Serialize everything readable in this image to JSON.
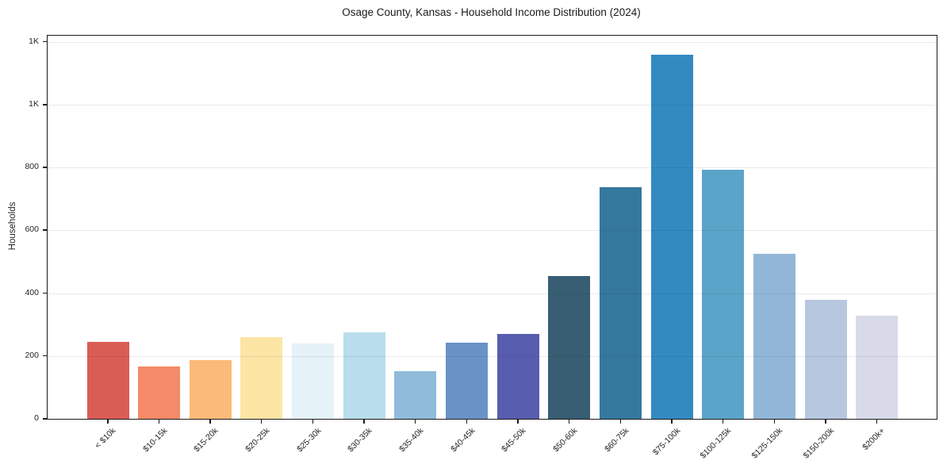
{
  "chart": {
    "title": "Osage County, Kansas - Household Income Distribution (2024)",
    "ylabel": "Households"
  },
  "chart_data": {
    "type": "bar",
    "title": "Osage County, Kansas - Household Income Distribution (2024)",
    "xlabel": "",
    "ylabel": "Households",
    "categories": [
      "< $10k",
      "$10-15k",
      "$15-20k",
      "$20-25k",
      "$25-30k",
      "$30-35k",
      "$35-40k",
      "$40-45k",
      "$45-50k",
      "$50-60k",
      "$60-75k",
      "$75-100k",
      "$100-125k",
      "$125-150k",
      "$150-200k",
      "$200k+"
    ],
    "values": [
      245,
      167,
      187,
      259,
      240,
      275,
      152,
      243,
      270,
      455,
      737,
      1160,
      793,
      525,
      379,
      328
    ],
    "bar_colors": [
      "#d95d55",
      "#f48a67",
      "#fcba78",
      "#fde5a6",
      "#e5f2f8",
      "#b9ddeb",
      "#90bbdb",
      "#6a92c6",
      "#585cae",
      "#375e73",
      "#35789e",
      "#338ac1",
      "#5ba4c9",
      "#92b6d8",
      "#b7c7e0",
      "#d8daea"
    ],
    "ytick_values": [
      0,
      200,
      400,
      600,
      800,
      1000,
      1200
    ],
    "ytick_labels": [
      "0",
      "200",
      "400",
      "600",
      "800",
      "1K",
      "1K"
    ],
    "ylim": [
      0,
      1220
    ],
    "grid": "horizontal-over-bars",
    "legend": "none",
    "style_colors": {
      "grid": "#e5e5e5",
      "spine": "#1a1a1a",
      "text": "#262626",
      "background": "#ffffff"
    }
  }
}
